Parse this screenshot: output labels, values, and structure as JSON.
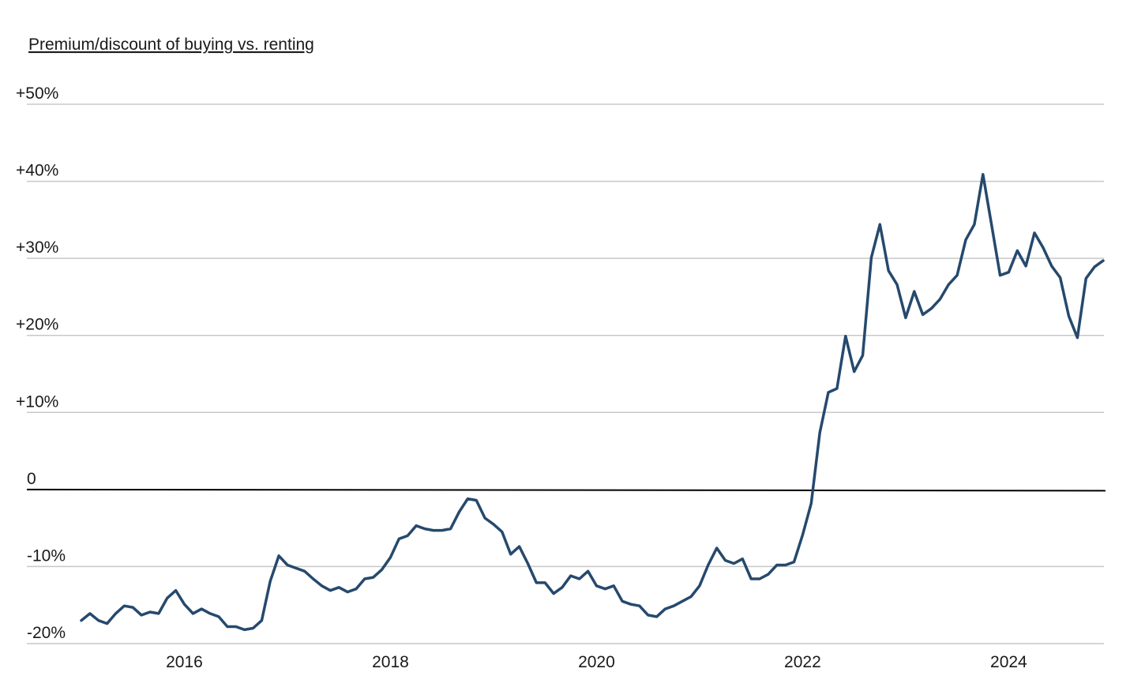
{
  "chart_data": {
    "type": "line",
    "title": "Premium/discount of buying vs. renting",
    "colors": {
      "series": "#26496d",
      "grid": "#c8c8c8",
      "zero_line": "#000000"
    },
    "ylim": [
      -20,
      50
    ],
    "xlim": [
      "2015-01",
      "2024-12"
    ],
    "grid": true,
    "yticks": [
      {
        "value": 50,
        "label": "+50%"
      },
      {
        "value": 40,
        "label": "+40%"
      },
      {
        "value": 30,
        "label": "+30%"
      },
      {
        "value": 20,
        "label": "+20%"
      },
      {
        "value": 10,
        "label": "+10%"
      },
      {
        "value": 0,
        "label": "0"
      },
      {
        "value": -10,
        "label": "-10%"
      },
      {
        "value": -20,
        "label": "-20%"
      }
    ],
    "xticks": [
      {
        "value": "2016-01",
        "label": "2016"
      },
      {
        "value": "2018-01",
        "label": "2018"
      },
      {
        "value": "2020-01",
        "label": "2020"
      },
      {
        "value": "2022-01",
        "label": "2022"
      },
      {
        "value": "2024-01",
        "label": "2024"
      }
    ],
    "series": [
      {
        "x": [
          "2015-01",
          "2015-02",
          "2015-03",
          "2015-04",
          "2015-05",
          "2015-06",
          "2015-07",
          "2015-08",
          "2015-09",
          "2015-10",
          "2015-11",
          "2015-12",
          "2016-01",
          "2016-02",
          "2016-03",
          "2016-04",
          "2016-05",
          "2016-06",
          "2016-07",
          "2016-08",
          "2016-09",
          "2016-10",
          "2016-11",
          "2016-12",
          "2017-01",
          "2017-02",
          "2017-03",
          "2017-04",
          "2017-05",
          "2017-06",
          "2017-07",
          "2017-08",
          "2017-09",
          "2017-10",
          "2017-11",
          "2017-12",
          "2018-01",
          "2018-02",
          "2018-03",
          "2018-04",
          "2018-05",
          "2018-06",
          "2018-07",
          "2018-08",
          "2018-09",
          "2018-10",
          "2018-11",
          "2018-12",
          "2019-01",
          "2019-02",
          "2019-03",
          "2019-04",
          "2019-05",
          "2019-06",
          "2019-07",
          "2019-08",
          "2019-09",
          "2019-10",
          "2019-11",
          "2019-12",
          "2020-01",
          "2020-02",
          "2020-03",
          "2020-04",
          "2020-05",
          "2020-06",
          "2020-07",
          "2020-08",
          "2020-09",
          "2020-10",
          "2020-11",
          "2020-12",
          "2021-01",
          "2021-02",
          "2021-03",
          "2021-04",
          "2021-05",
          "2021-06",
          "2021-07",
          "2021-08",
          "2021-09",
          "2021-10",
          "2021-11",
          "2021-12",
          "2022-01",
          "2022-02",
          "2022-03",
          "2022-04",
          "2022-05",
          "2022-06",
          "2022-07",
          "2022-08",
          "2022-09",
          "2022-10",
          "2022-11",
          "2022-12",
          "2023-01",
          "2023-02",
          "2023-03",
          "2023-04",
          "2023-05",
          "2023-06",
          "2023-07",
          "2023-08",
          "2023-09",
          "2023-10",
          "2023-11",
          "2023-12",
          "2024-01",
          "2024-02",
          "2024-03",
          "2024-04",
          "2024-05",
          "2024-06",
          "2024-07",
          "2024-08",
          "2024-09",
          "2024-10",
          "2024-11",
          "2024-12"
        ],
        "values": [
          -17.0,
          -16.1,
          -17.0,
          -17.4,
          -16.1,
          -15.1,
          -15.3,
          -16.3,
          -15.9,
          -16.1,
          -14.1,
          -13.1,
          -14.9,
          -16.1,
          -15.5,
          -16.1,
          -16.5,
          -17.8,
          -17.8,
          -18.2,
          -18.0,
          -17.0,
          -11.9,
          -8.6,
          -9.8,
          -10.2,
          -10.6,
          -11.6,
          -12.5,
          -13.1,
          -12.7,
          -13.3,
          -12.9,
          -11.6,
          -11.4,
          -10.4,
          -8.8,
          -6.4,
          -6.0,
          -4.7,
          -5.1,
          -5.3,
          -5.3,
          -5.1,
          -2.9,
          -1.2,
          -1.4,
          -3.7,
          -4.5,
          -5.5,
          -8.4,
          -7.4,
          -9.6,
          -12.1,
          -12.1,
          -13.5,
          -12.7,
          -11.2,
          -11.6,
          -10.6,
          -12.5,
          -12.9,
          -12.5,
          -14.5,
          -14.9,
          -15.1,
          -16.3,
          -16.5,
          -15.5,
          -15.1,
          -14.5,
          -13.9,
          -12.5,
          -9.8,
          -7.6,
          -9.2,
          -9.6,
          -9.0,
          -11.6,
          -11.6,
          -11.0,
          -9.8,
          -9.8,
          -9.4,
          -5.9,
          -1.8,
          7.4,
          12.6,
          13.1,
          19.9,
          15.3,
          17.4,
          30.1,
          34.4,
          28.4,
          26.6,
          22.3,
          25.7,
          22.7,
          23.5,
          24.7,
          26.6,
          27.8,
          32.4,
          34.4,
          40.9,
          34.4,
          27.8,
          28.2,
          31.0,
          29.0,
          33.3,
          31.4,
          29.0,
          27.5,
          22.5,
          19.7,
          27.4,
          28.9,
          29.7
        ]
      }
    ]
  }
}
